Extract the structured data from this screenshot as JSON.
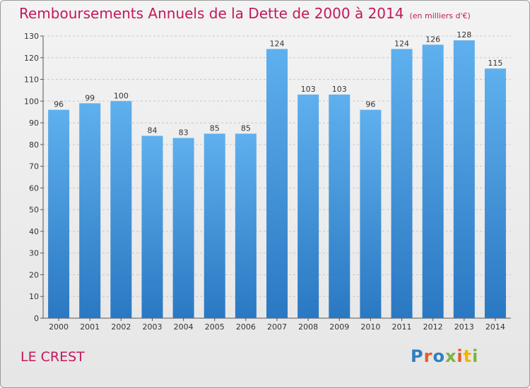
{
  "chart_data": {
    "type": "bar",
    "title": "Remboursements Annuels de la Dette de 2000 à 2014",
    "unit": "(en milliers d'€)",
    "categories": [
      "2000",
      "2001",
      "2002",
      "2003",
      "2004",
      "2005",
      "2006",
      "2007",
      "2008",
      "2009",
      "2010",
      "2011",
      "2012",
      "2013",
      "2014"
    ],
    "values": [
      96,
      99,
      100,
      84,
      83,
      85,
      85,
      124,
      103,
      103,
      96,
      124,
      126,
      128,
      115
    ],
    "ylim": [
      0,
      130
    ],
    "yticks": [
      0,
      10,
      20,
      30,
      40,
      50,
      60,
      70,
      80,
      90,
      100,
      110,
      120,
      130
    ],
    "grid": true,
    "bar_color": "#3d8fd6",
    "xlabel": "",
    "ylabel": ""
  },
  "footer": {
    "commune": "LE CREST",
    "logo_text": "Proxiti",
    "logo_colors": [
      "#2f7fc0",
      "#e85a2a",
      "#2f7fc0",
      "#7cb342",
      "#e85a2a",
      "#f4b400",
      "#7cb342"
    ]
  }
}
